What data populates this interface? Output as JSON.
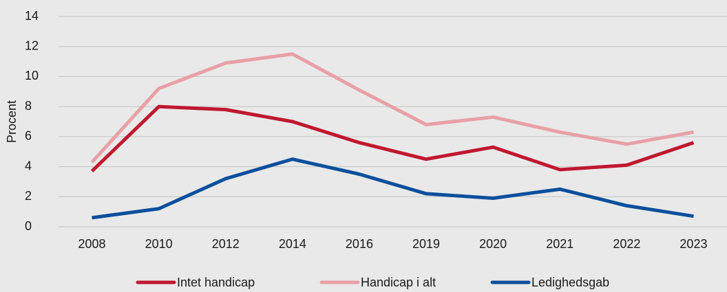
{
  "chart_data": {
    "type": "line",
    "y_label": "Procent",
    "categories": [
      "2008",
      "2010",
      "2012",
      "2014",
      "2016",
      "2019",
      "2020",
      "2021",
      "2022",
      "2023"
    ],
    "series": [
      {
        "name": "Intet handicap",
        "color": "#c0182f",
        "values": [
          3.7,
          8.0,
          7.8,
          7.0,
          5.6,
          4.5,
          5.3,
          3.8,
          4.1,
          5.6
        ]
      },
      {
        "name": "Handicap i alt",
        "color": "#e8a0a6",
        "values": [
          4.3,
          9.2,
          10.9,
          11.5,
          9.1,
          6.8,
          7.3,
          6.3,
          5.5,
          6.3
        ]
      },
      {
        "name": "Ledighedsgab",
        "color": "#0b4f9c",
        "values": [
          0.6,
          1.2,
          3.2,
          4.5,
          3.5,
          2.2,
          1.9,
          2.5,
          1.4,
          0.7
        ]
      }
    ],
    "ylim": [
      0,
      14
    ],
    "yticks": [
      0,
      2,
      4,
      6,
      8,
      10,
      12,
      14
    ],
    "grid": true,
    "legend": "bottom"
  }
}
